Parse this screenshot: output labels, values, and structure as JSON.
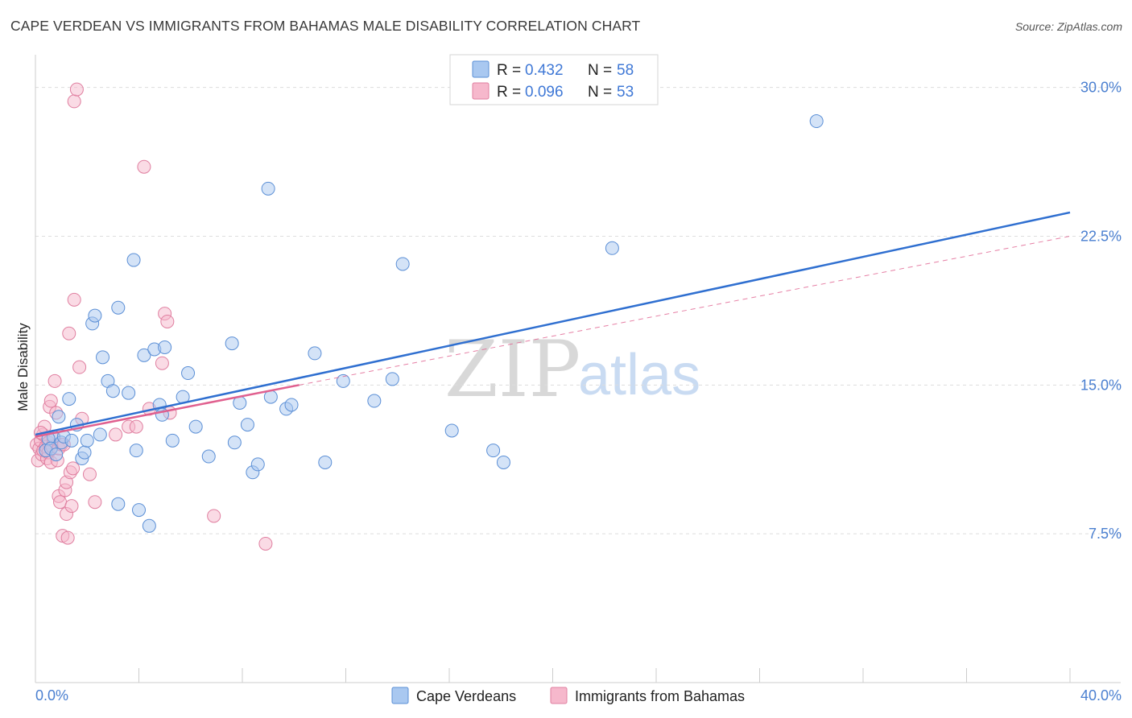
{
  "header": {
    "title": "CAPE VERDEAN VS IMMIGRANTS FROM BAHAMAS MALE DISABILITY CORRELATION CHART",
    "source": "Source: ZipAtlas.com"
  },
  "watermark": {
    "zip": "ZIP",
    "atlas": "atlas"
  },
  "legend": {
    "rows": [
      {
        "r_label": "R =",
        "r_value": "0.432",
        "n_label": "N =",
        "n_value": "58"
      },
      {
        "r_label": "R =",
        "r_value": "0.096",
        "n_label": "N =",
        "n_value": "53"
      }
    ]
  },
  "bottom_legend": {
    "series1": "Cape Verdeans",
    "series2": "Immigrants from Bahamas"
  },
  "colors": {
    "blue_fill": "#a9c8f0",
    "blue_stroke": "#5b8fd6",
    "blue_line": "#2f6fd0",
    "pink_fill": "#f6b8cc",
    "pink_stroke": "#e07fa0",
    "pink_line": "#e0608f",
    "grid": "#dddddd",
    "axis_text": "#4a7fd0"
  },
  "chart_data": {
    "type": "scatter",
    "title": "CAPE VERDEAN VS IMMIGRANTS FROM BAHAMAS MALE DISABILITY CORRELATION CHART",
    "xlabel": "",
    "ylabel": "Male Disability",
    "xlim": [
      0,
      40
    ],
    "ylim": [
      0,
      31
    ],
    "x_tick_labels": [
      {
        "value": 0,
        "label": "0.0%"
      },
      {
        "value": 40,
        "label": "40.0%"
      }
    ],
    "y_ticks": [
      {
        "value": 7.5,
        "label": "7.5%"
      },
      {
        "value": 15.0,
        "label": "15.0%"
      },
      {
        "value": 22.5,
        "label": "22.5%"
      },
      {
        "value": 30.0,
        "label": "30.0%"
      }
    ],
    "series": [
      {
        "name": "Cape Verdeans",
        "color": "#a9c8f0",
        "points": [
          [
            0.7,
            12.4
          ],
          [
            0.9,
            13.4
          ],
          [
            1.0,
            12.1
          ],
          [
            1.1,
            12.4
          ],
          [
            1.3,
            14.3
          ],
          [
            1.4,
            12.2
          ],
          [
            1.6,
            13.0
          ],
          [
            1.8,
            11.3
          ],
          [
            1.9,
            11.6
          ],
          [
            2.0,
            12.2
          ],
          [
            2.2,
            18.1
          ],
          [
            2.3,
            18.5
          ],
          [
            2.5,
            12.5
          ],
          [
            2.6,
            16.4
          ],
          [
            2.8,
            15.2
          ],
          [
            3.0,
            14.7
          ],
          [
            3.2,
            18.9
          ],
          [
            3.2,
            9.0
          ],
          [
            3.6,
            14.6
          ],
          [
            3.8,
            21.3
          ],
          [
            3.9,
            11.7
          ],
          [
            4.0,
            8.7
          ],
          [
            4.2,
            16.5
          ],
          [
            4.4,
            7.9
          ],
          [
            4.6,
            16.8
          ],
          [
            4.8,
            14.0
          ],
          [
            4.9,
            13.5
          ],
          [
            5.0,
            16.9
          ],
          [
            5.3,
            12.2
          ],
          [
            5.7,
            14.4
          ],
          [
            5.9,
            15.6
          ],
          [
            6.2,
            12.9
          ],
          [
            6.7,
            11.4
          ],
          [
            7.6,
            17.1
          ],
          [
            7.7,
            12.1
          ],
          [
            7.9,
            14.1
          ],
          [
            8.2,
            13.0
          ],
          [
            8.4,
            10.6
          ],
          [
            8.6,
            11.0
          ],
          [
            9.0,
            24.9
          ],
          [
            9.1,
            14.4
          ],
          [
            9.7,
            13.8
          ],
          [
            9.9,
            14.0
          ],
          [
            10.8,
            16.6
          ],
          [
            11.2,
            11.1
          ],
          [
            11.9,
            15.2
          ],
          [
            13.1,
            14.2
          ],
          [
            13.8,
            15.3
          ],
          [
            14.2,
            21.1
          ],
          [
            16.1,
            12.7
          ],
          [
            17.7,
            11.7
          ],
          [
            18.1,
            11.1
          ],
          [
            22.3,
            21.9
          ],
          [
            30.2,
            28.3
          ],
          [
            0.4,
            11.7
          ],
          [
            0.5,
            12.3
          ],
          [
            0.6,
            11.8
          ],
          [
            0.8,
            11.5
          ]
        ]
      },
      {
        "name": "Immigrants from Bahamas",
        "color": "#f6b8cc",
        "points": [
          [
            0.05,
            12.0
          ],
          [
            0.1,
            11.2
          ],
          [
            0.15,
            11.8
          ],
          [
            0.2,
            12.2
          ],
          [
            0.25,
            11.5
          ],
          [
            0.3,
            11.7
          ],
          [
            0.3,
            12.5
          ],
          [
            0.35,
            12.9
          ],
          [
            0.4,
            11.9
          ],
          [
            0.45,
            11.3
          ],
          [
            0.5,
            12.1
          ],
          [
            0.5,
            11.6
          ],
          [
            0.55,
            13.9
          ],
          [
            0.6,
            11.1
          ],
          [
            0.6,
            14.2
          ],
          [
            0.65,
            11.9
          ],
          [
            0.7,
            12.3
          ],
          [
            0.75,
            15.2
          ],
          [
            0.8,
            13.6
          ],
          [
            0.85,
            11.2
          ],
          [
            0.9,
            11.8
          ],
          [
            0.9,
            9.4
          ],
          [
            0.95,
            9.1
          ],
          [
            1.0,
            12.0
          ],
          [
            1.05,
            7.4
          ],
          [
            1.1,
            12.0
          ],
          [
            1.15,
            9.7
          ],
          [
            1.2,
            10.1
          ],
          [
            1.2,
            8.5
          ],
          [
            1.25,
            7.3
          ],
          [
            1.3,
            17.6
          ],
          [
            1.35,
            10.6
          ],
          [
            1.4,
            8.9
          ],
          [
            1.45,
            10.8
          ],
          [
            1.5,
            19.3
          ],
          [
            1.5,
            29.3
          ],
          [
            1.6,
            29.9
          ],
          [
            1.7,
            15.9
          ],
          [
            1.8,
            13.3
          ],
          [
            2.1,
            10.5
          ],
          [
            2.3,
            9.1
          ],
          [
            3.1,
            12.5
          ],
          [
            3.6,
            12.9
          ],
          [
            3.9,
            12.9
          ],
          [
            4.2,
            26.0
          ],
          [
            4.4,
            13.8
          ],
          [
            4.9,
            16.1
          ],
          [
            5.0,
            18.6
          ],
          [
            5.1,
            18.2
          ],
          [
            5.2,
            13.6
          ],
          [
            6.9,
            8.4
          ],
          [
            8.9,
            7.0
          ],
          [
            0.2,
            12.6
          ]
        ]
      }
    ],
    "trend_lines": [
      {
        "series": "Cape Verdeans",
        "x0": 0.0,
        "y0": 12.5,
        "x1": 40.0,
        "y1": 23.7,
        "style": "solid"
      },
      {
        "series": "Immigrants from Bahamas",
        "x0": 0.0,
        "y0": 12.4,
        "x1": 10.2,
        "y1": 15.0,
        "style": "solid"
      },
      {
        "series": "Immigrants from Bahamas",
        "x0": 10.2,
        "y0": 15.0,
        "x1": 40.0,
        "y1": 22.5,
        "style": "dashed"
      }
    ]
  }
}
